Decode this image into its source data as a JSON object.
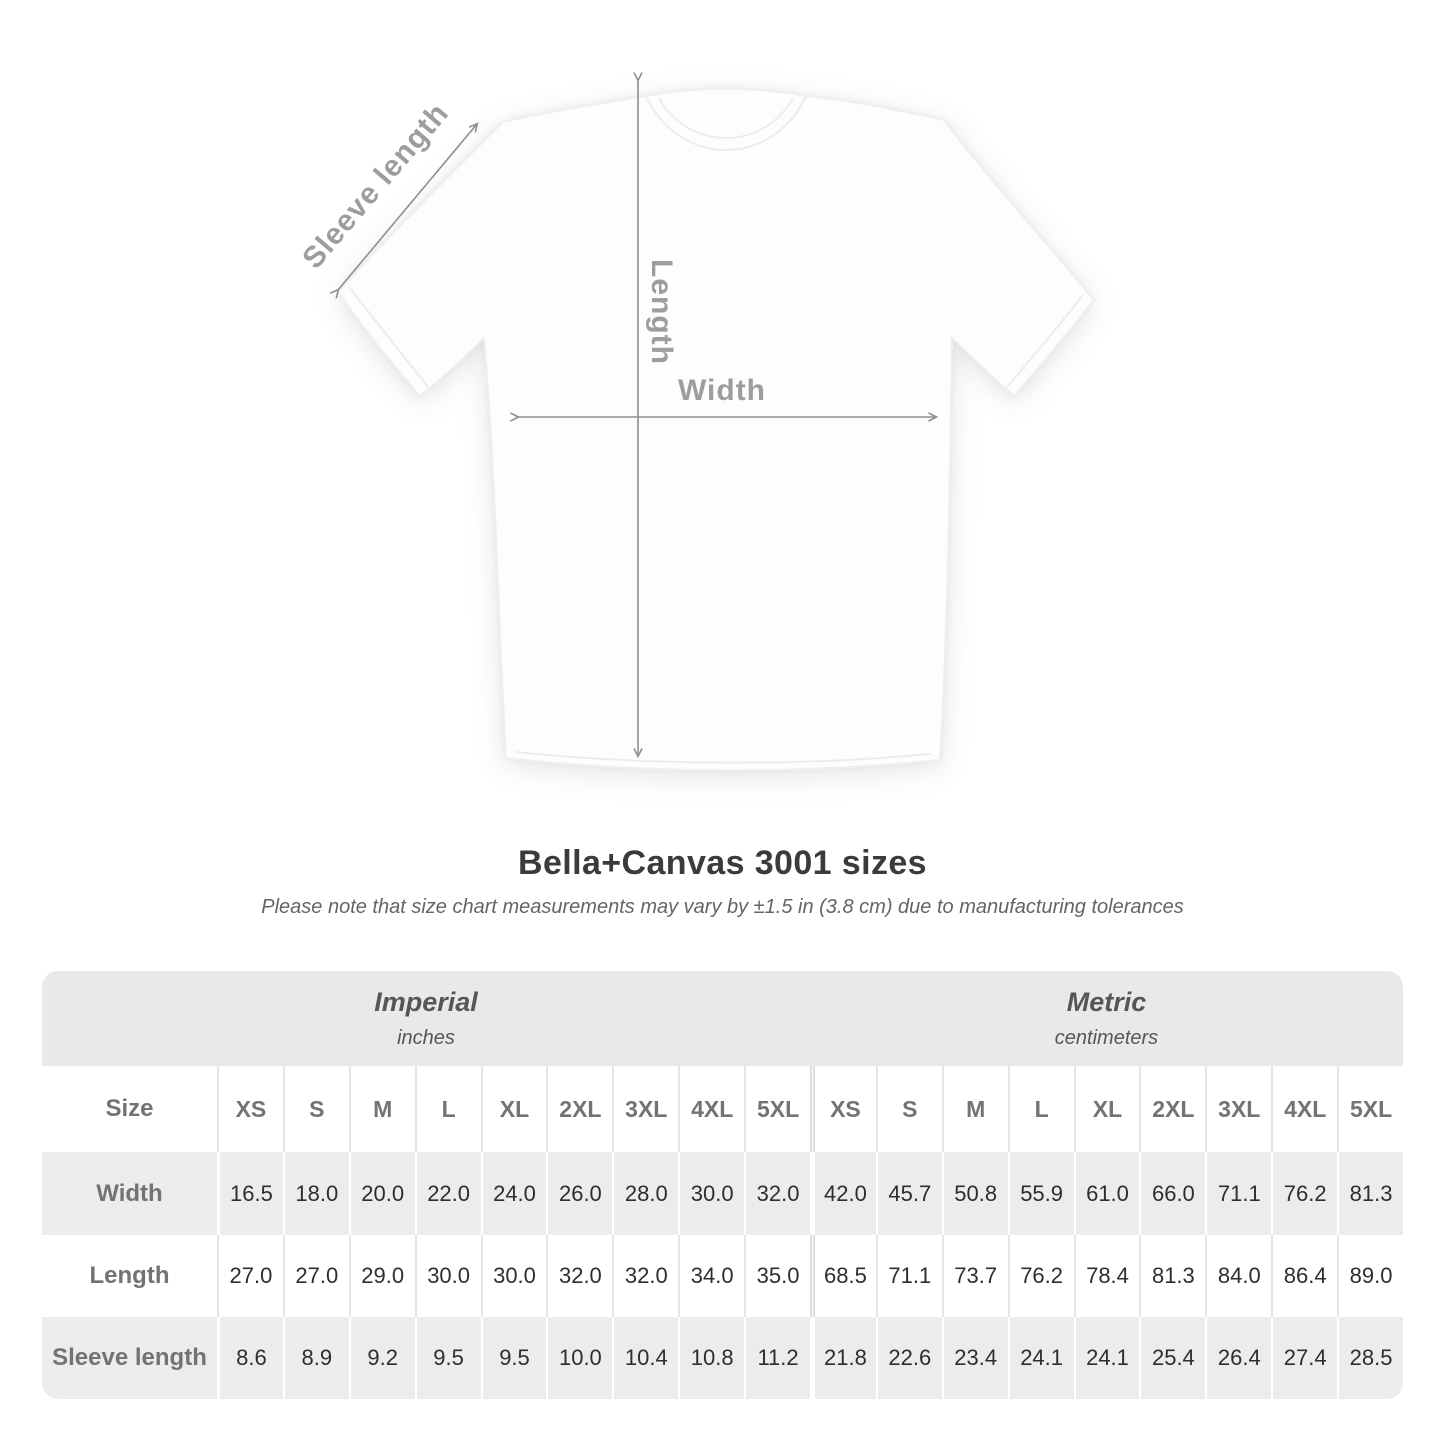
{
  "diagram": {
    "sleeve_label": "Sleeve length",
    "length_label": "Length",
    "width_label": "Width"
  },
  "title": "Bella+Canvas 3001 sizes",
  "note": "Please note that size chart measurements may vary by ±1.5 in (3.8 cm) due to manufacturing tolerances",
  "table": {
    "unit_groups": [
      {
        "label": "Imperial",
        "sublabel": "inches"
      },
      {
        "label": "Metric",
        "sublabel": "centimeters"
      }
    ],
    "size_header": "Size",
    "sizes": [
      "XS",
      "S",
      "M",
      "L",
      "XL",
      "2XL",
      "3XL",
      "4XL",
      "5XL"
    ],
    "rows": [
      {
        "label": "Width",
        "imperial": [
          "16.5",
          "18.0",
          "20.0",
          "22.0",
          "24.0",
          "26.0",
          "28.0",
          "30.0",
          "32.0"
        ],
        "metric": [
          "42.0",
          "45.7",
          "50.8",
          "55.9",
          "61.0",
          "66.0",
          "71.1",
          "76.2",
          "81.3"
        ]
      },
      {
        "label": "Length",
        "imperial": [
          "27.0",
          "27.0",
          "29.0",
          "30.0",
          "30.0",
          "32.0",
          "32.0",
          "34.0",
          "35.0"
        ],
        "metric": [
          "68.5",
          "71.1",
          "73.7",
          "76.2",
          "78.4",
          "81.3",
          "84.0",
          "86.4",
          "89.0"
        ]
      },
      {
        "label": "Sleeve length",
        "imperial": [
          "8.6",
          "8.9",
          "9.2",
          "9.5",
          "9.5",
          "10.0",
          "10.4",
          "10.8",
          "11.2"
        ],
        "metric": [
          "21.8",
          "22.6",
          "23.4",
          "24.1",
          "24.1",
          "25.4",
          "26.4",
          "27.4",
          "28.5"
        ]
      }
    ]
  },
  "colors": {
    "arrow": "#8f8f8f",
    "diagram_label": "#9d9d9d",
    "title_text": "#3b3b3b",
    "header_band": "#e9e9e9",
    "shaded_row": "#ececec",
    "value_text": "#2e2e2e"
  },
  "chart_data": {
    "type": "table",
    "title": "Bella+Canvas 3001 sizes",
    "note": "Please note that size chart measurements may vary by ±1.5 in (3.8 cm) due to manufacturing tolerances",
    "units": {
      "imperial": "inches",
      "metric": "centimeters"
    },
    "sizes": [
      "XS",
      "S",
      "M",
      "L",
      "XL",
      "2XL",
      "3XL",
      "4XL",
      "5XL"
    ],
    "measurements": [
      {
        "name": "Width",
        "imperial_inches": [
          16.5,
          18.0,
          20.0,
          22.0,
          24.0,
          26.0,
          28.0,
          30.0,
          32.0
        ],
        "metric_cm": [
          42.0,
          45.7,
          50.8,
          55.9,
          61.0,
          66.0,
          71.1,
          76.2,
          81.3
        ]
      },
      {
        "name": "Length",
        "imperial_inches": [
          27.0,
          27.0,
          29.0,
          30.0,
          30.0,
          32.0,
          32.0,
          34.0,
          35.0
        ],
        "metric_cm": [
          68.5,
          71.1,
          73.7,
          76.2,
          78.4,
          81.3,
          84.0,
          86.4,
          89.0
        ]
      },
      {
        "name": "Sleeve length",
        "imperial_inches": [
          8.6,
          8.9,
          9.2,
          9.5,
          9.5,
          10.0,
          10.4,
          10.8,
          11.2
        ],
        "metric_cm": [
          21.8,
          22.6,
          23.4,
          24.1,
          24.1,
          25.4,
          26.4,
          27.4,
          28.5
        ]
      }
    ]
  }
}
